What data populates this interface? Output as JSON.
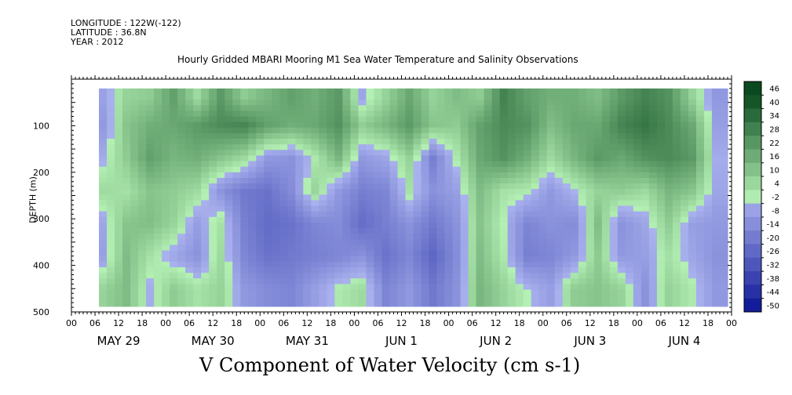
{
  "header": {
    "longitude": "LONGITUDE : 122W(-122)",
    "latitude": "LATITUDE : 36.8N",
    "year": "YEAR : 2012"
  },
  "title": "Hourly Gridded MBARI Mooring M1 Sea Water Temperature and Salinity Observations",
  "caption": "V Component of Water Velocity (cm s-1)",
  "chart_data": {
    "type": "heatmap",
    "ylabel": "DEPTH (m)",
    "y_reversed": true,
    "ylim": [
      500,
      0
    ],
    "y_ticks": [
      "100",
      "200",
      "300",
      "400",
      "500"
    ],
    "x_hour_ticks": [
      "00",
      "06",
      "12",
      "18",
      "00",
      "06",
      "12",
      "18",
      "00",
      "06",
      "12",
      "18",
      "00",
      "06",
      "12",
      "18",
      "00",
      "06",
      "12",
      "18",
      "00",
      "06",
      "12",
      "18",
      "00",
      "06",
      "12",
      "18",
      "00"
    ],
    "x_day_labels": [
      "MAY 29",
      "MAY 30",
      "MAY 31",
      "JUN  1",
      "JUN  2",
      "JUN  3",
      "JUN  4"
    ],
    "colorbar_levels": [
      "46",
      "40",
      "34",
      "28",
      "22",
      "16",
      "10",
      "4",
      "-2",
      "-8",
      "-14",
      "-20",
      "-26",
      "-32",
      "-38",
      "-44",
      "-50"
    ],
    "color_low": "#0a1494",
    "color_mid_low": "#aab2ee",
    "color_mid_high": "#b4f0b4",
    "color_high": "#0a4a1e",
    "data_start_hour": 7,
    "data_end_hour": 167,
    "depth_top": 20,
    "depth_bottom": 485,
    "hours": [
      8,
      14,
      20,
      26,
      32,
      38,
      44,
      50,
      56,
      62,
      68,
      74,
      80,
      86,
      92,
      98,
      104,
      110,
      116,
      122,
      128,
      134,
      140,
      146,
      152,
      158,
      164
    ],
    "depths": [
      40,
      100,
      170,
      240,
      310,
      380,
      450
    ],
    "values": [
      [
        -5,
        8,
        10,
        22,
        6,
        24,
        10,
        16,
        22,
        18,
        24,
        -4,
        8,
        20,
        8,
        14,
        10,
        30,
        22,
        18,
        18,
        14,
        24,
        30,
        26,
        8,
        -8
      ],
      [
        -8,
        12,
        18,
        20,
        24,
        28,
        30,
        22,
        18,
        20,
        26,
        10,
        16,
        24,
        12,
        10,
        22,
        28,
        26,
        14,
        20,
        20,
        30,
        34,
        28,
        20,
        -6
      ],
      [
        -2,
        10,
        22,
        16,
        18,
        12,
        6,
        -8,
        -10,
        2,
        16,
        -8,
        -4,
        8,
        -16,
        2,
        20,
        26,
        18,
        6,
        16,
        24,
        20,
        26,
        28,
        24,
        -2
      ],
      [
        6,
        4,
        12,
        10,
        6,
        -10,
        -18,
        -20,
        -12,
        8,
        -8,
        -16,
        -14,
        4,
        -10,
        -6,
        14,
        4,
        2,
        -8,
        0,
        8,
        10,
        6,
        16,
        12,
        -4
      ],
      [
        -4,
        12,
        14,
        8,
        -6,
        4,
        -16,
        -22,
        -20,
        -14,
        -12,
        -22,
        -16,
        -10,
        -18,
        -10,
        12,
        0,
        -14,
        -10,
        -12,
        14,
        -10,
        -4,
        10,
        -6,
        -8
      ],
      [
        -6,
        14,
        4,
        -4,
        -10,
        6,
        -14,
        -20,
        -18,
        -16,
        -14,
        -10,
        -20,
        -14,
        -24,
        -12,
        14,
        2,
        -16,
        -14,
        -8,
        10,
        -8,
        -6,
        4,
        -4,
        -10
      ],
      [
        8,
        14,
        -2,
        10,
        4,
        8,
        -8,
        -12,
        -14,
        -6,
        2,
        6,
        -14,
        -8,
        -18,
        -10,
        16,
        8,
        0,
        -6,
        10,
        12,
        8,
        -10,
        8,
        2,
        -8
      ]
    ]
  }
}
